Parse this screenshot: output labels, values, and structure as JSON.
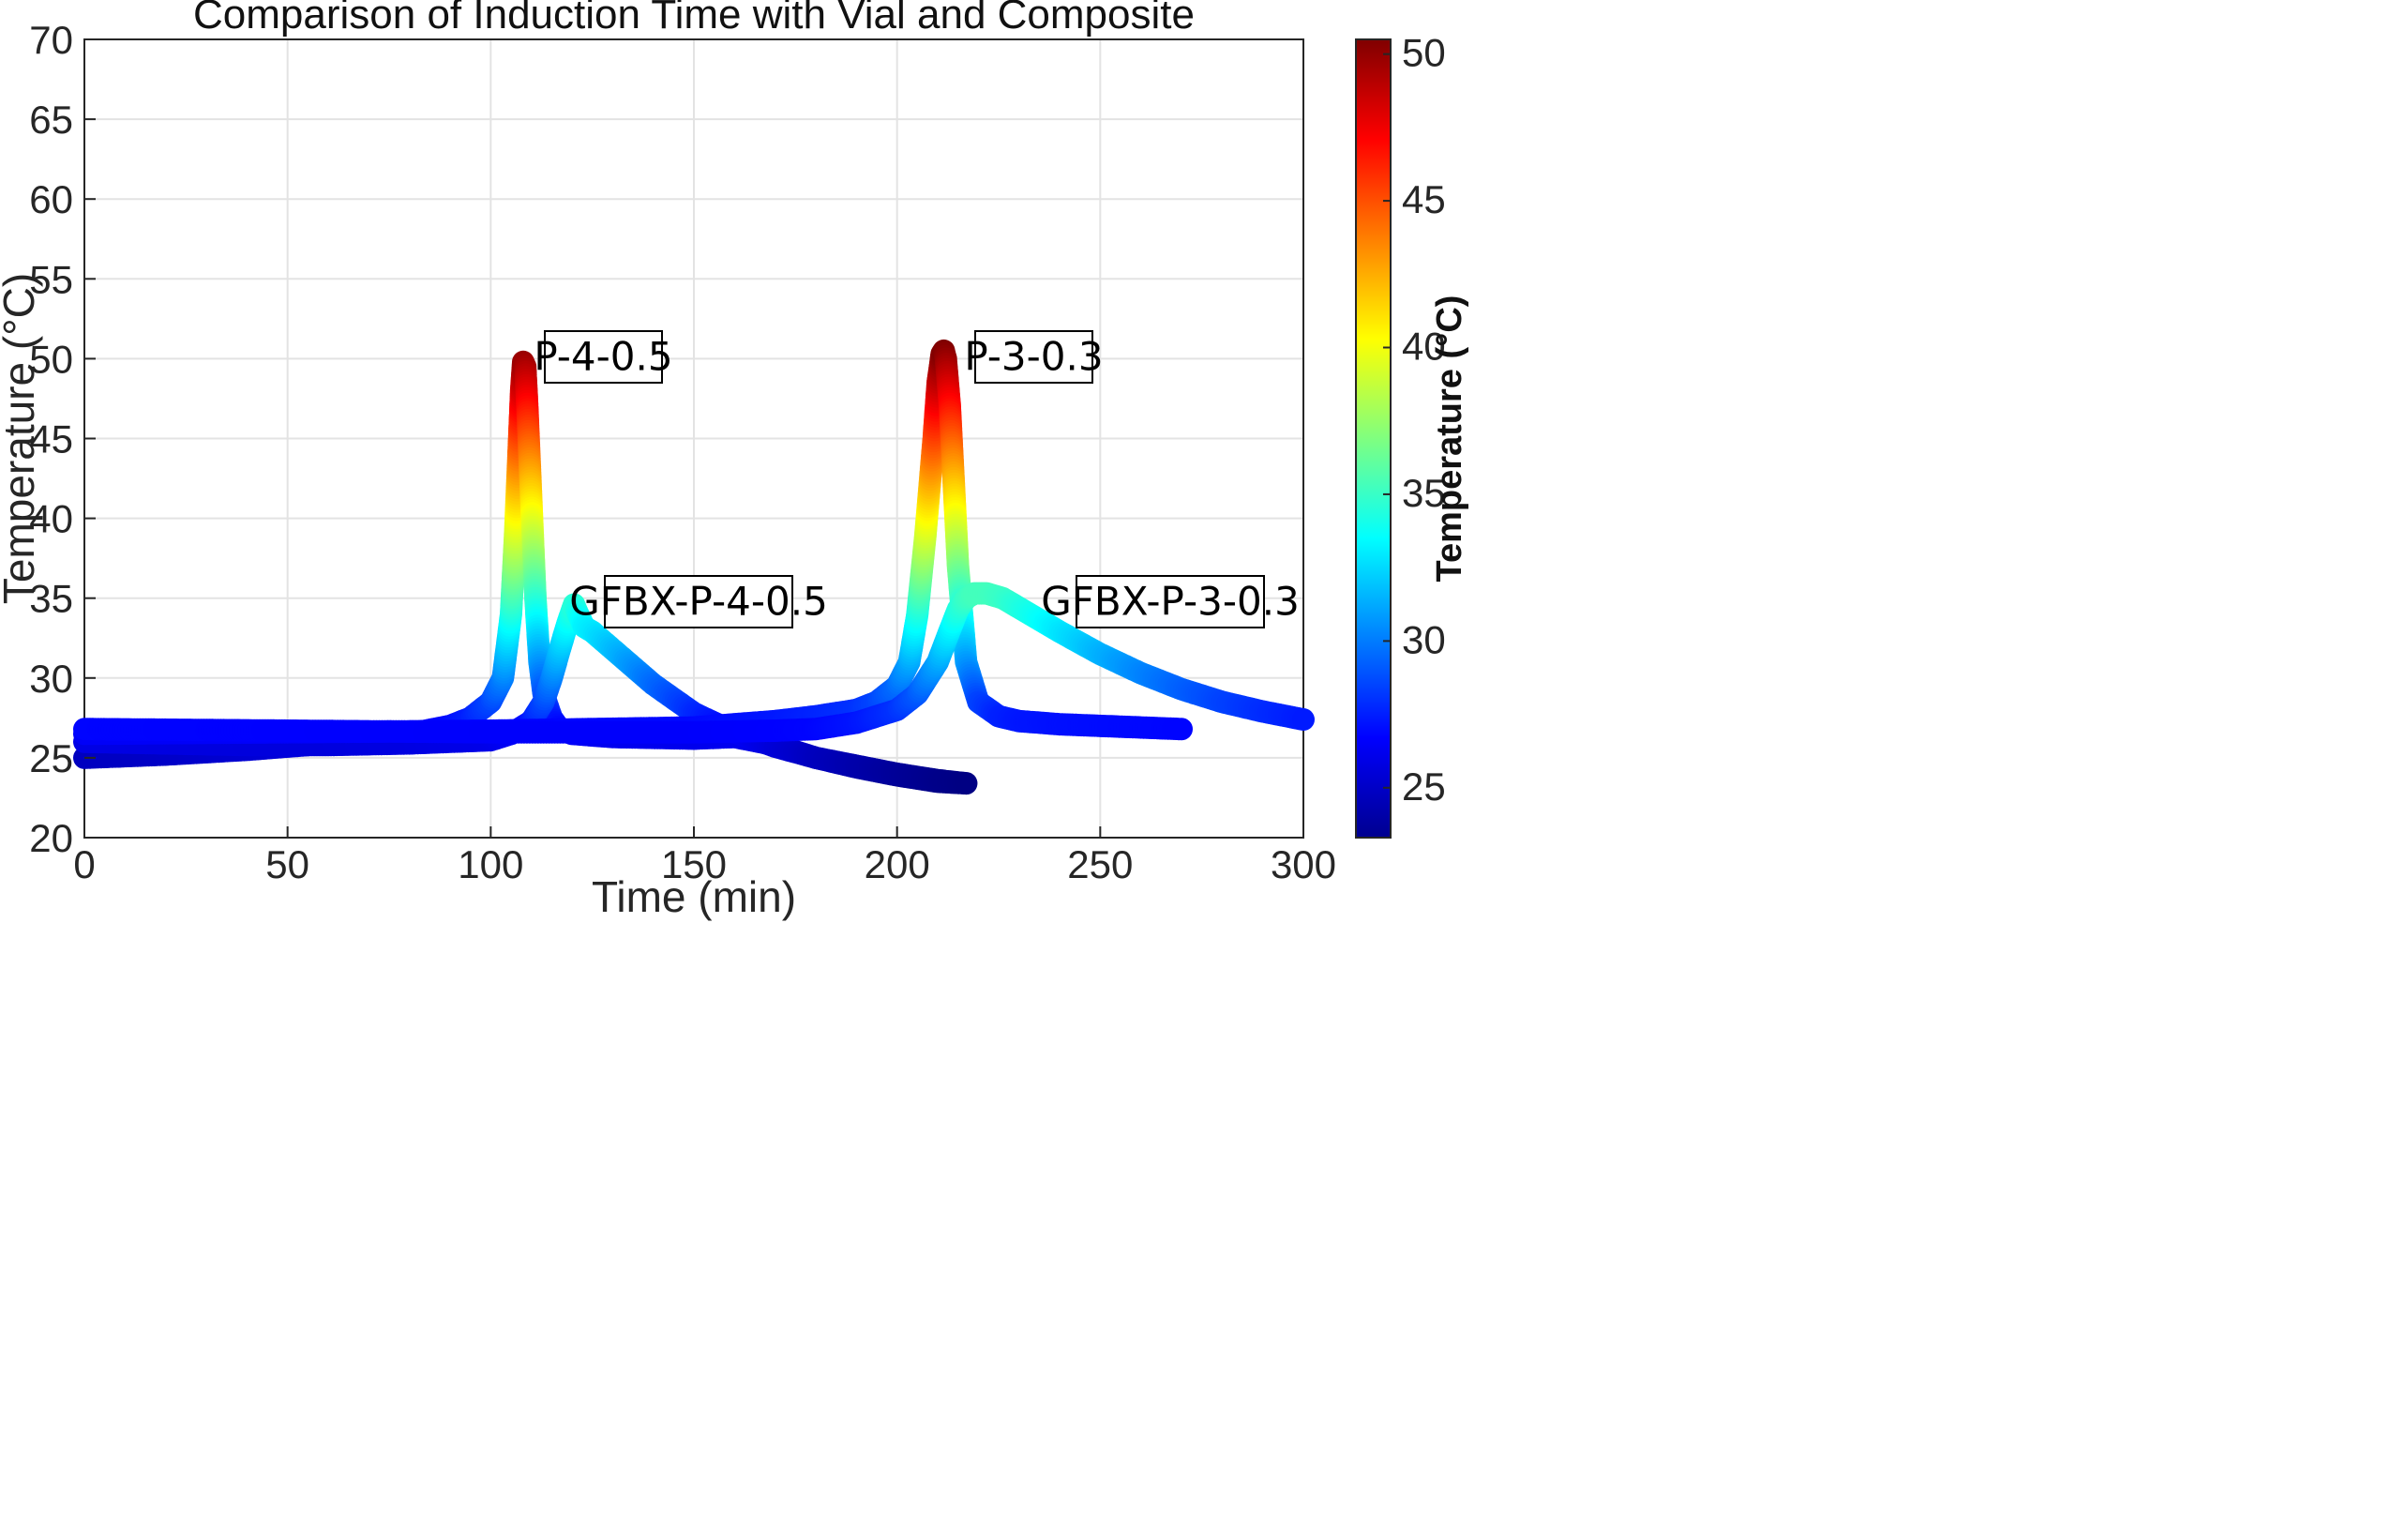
{
  "chart_data": {
    "type": "scatter",
    "title": "Comparison of Induction Time with Vial and Composite",
    "xlabel": "Time (min)",
    "ylabel": "Temperature (°C)",
    "xlim": [
      0,
      300
    ],
    "ylim": [
      20,
      70
    ],
    "xticks": [
      0,
      50,
      100,
      150,
      200,
      250,
      300
    ],
    "yticks": [
      20,
      25,
      30,
      35,
      40,
      45,
      50,
      55,
      60,
      65,
      70
    ],
    "grid": true,
    "colormap": "jet",
    "colorbar": {
      "label": "Temperature (°C)",
      "range": [
        23.3,
        50.5
      ],
      "ticks": [
        25,
        30,
        35,
        40,
        45,
        50
      ]
    },
    "series": [
      {
        "name": "P-4-0.5",
        "x": [
          0,
          20,
          40,
          60,
          80,
          90,
          95,
          100,
          103,
          105,
          106,
          107,
          107.5,
          108,
          108.5,
          109,
          110,
          111,
          112,
          113,
          115,
          117,
          120,
          130,
          150,
          160,
          170,
          180,
          190,
          200,
          210,
          217
        ],
        "y": [
          25.0,
          25.2,
          25.5,
          25.9,
          26.5,
          27.0,
          27.5,
          28.5,
          30.0,
          34.0,
          39.0,
          45.0,
          48.0,
          49.8,
          49.5,
          47.0,
          41.0,
          35.0,
          31.0,
          29.0,
          27.5,
          26.8,
          26.5,
          26.3,
          26.2,
          26.3,
          25.8,
          25.0,
          24.4,
          23.9,
          23.5,
          23.4
        ]
      },
      {
        "name": "GFBX-P-4-0.5",
        "x": [
          0,
          20,
          40,
          60,
          80,
          100,
          105,
          110,
          113,
          115,
          117,
          119,
          120.5,
          121.5,
          123,
          125,
          130,
          140,
          150,
          160,
          170,
          180,
          190,
          200,
          210,
          217
        ],
        "y": [
          26.0,
          25.9,
          25.8,
          25.8,
          25.9,
          26.1,
          26.5,
          27.3,
          28.5,
          30.0,
          31.8,
          33.5,
          34.6,
          34.0,
          33.2,
          32.9,
          31.8,
          29.6,
          27.8,
          26.6,
          25.7,
          25.0,
          24.5,
          24.0,
          23.6,
          23.4
        ]
      },
      {
        "name": "P-3-0.3",
        "x": [
          0,
          50,
          100,
          150,
          170,
          180,
          190,
          195,
          200,
          203,
          205,
          207,
          209,
          210,
          211,
          211.5,
          212,
          213,
          214,
          215,
          217,
          220,
          225,
          230,
          240,
          250,
          260,
          270
        ],
        "y": [
          26.5,
          26.6,
          26.7,
          26.9,
          27.3,
          27.6,
          28.0,
          28.5,
          29.5,
          31.0,
          34.0,
          39.0,
          45.0,
          48.5,
          50.3,
          50.5,
          50.0,
          47.0,
          42.0,
          37.0,
          31.0,
          28.5,
          27.6,
          27.3,
          27.1,
          27.0,
          26.9,
          26.8
        ]
      },
      {
        "name": "GFBX-P-3-0.3",
        "x": [
          0,
          50,
          100,
          150,
          170,
          180,
          190,
          200,
          205,
          210,
          213,
          215,
          217,
          219,
          222,
          226,
          230,
          240,
          250,
          260,
          270,
          280,
          290,
          300
        ],
        "y": [
          26.8,
          26.7,
          26.6,
          26.6,
          26.7,
          26.8,
          27.2,
          28.0,
          29.0,
          31.0,
          33.0,
          34.3,
          35.0,
          35.3,
          35.3,
          35.0,
          34.4,
          32.9,
          31.5,
          30.3,
          29.3,
          28.5,
          27.9,
          27.4
        ]
      }
    ],
    "annotations": [
      {
        "text": "P-4-0.5"
      },
      {
        "text": "P-3-0.3"
      },
      {
        "text": "GFBX-P-4-0.5"
      },
      {
        "text": "GFBX-P-3-0.3"
      }
    ]
  }
}
